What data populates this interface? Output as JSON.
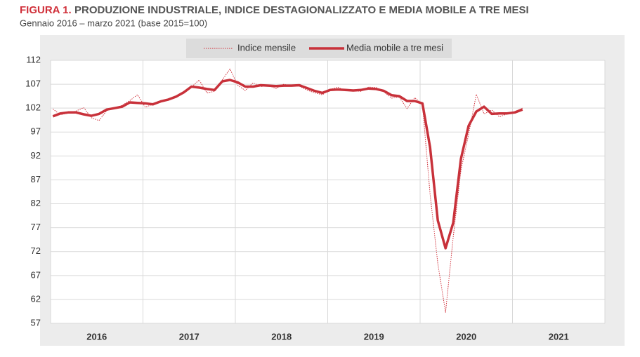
{
  "chart_data": {
    "type": "line",
    "title_label": "FIGURA 1.",
    "title": "PRODUZIONE INDUSTRIALE, INDICE DESTAGIONALIZZATO E MEDIA MOBILE A TRE MESI",
    "subtitle": "Gennaio 2016 – marzo 2021 (base 2015=100)",
    "year_groups": [
      "2016",
      "2017",
      "2018",
      "2019",
      "2020",
      "2021"
    ],
    "months_per_group": 12,
    "ylim": [
      57,
      112
    ],
    "yticks": [
      57,
      62,
      67,
      72,
      77,
      82,
      87,
      92,
      97,
      102,
      107,
      112
    ],
    "grid": true,
    "series": [
      {
        "name": "Indice mensile",
        "color": "#d0303a",
        "style": "dotted",
        "values": [
          101.8,
          100.6,
          101.0,
          101.4,
          102.1,
          100.0,
          99.4,
          101.5,
          102.0,
          102.6,
          103.6,
          104.8,
          102.2,
          102.8,
          103.5,
          103.9,
          104.2,
          105.5,
          106.4,
          107.9,
          105.2,
          105.5,
          107.9,
          110.2,
          106.8,
          105.7,
          107.3,
          106.5,
          106.7,
          106.1,
          107.0,
          106.6,
          106.6,
          105.8,
          105.2,
          104.8,
          105.9,
          106.4,
          105.6,
          105.7,
          105.5,
          106.4,
          106.3,
          105.4,
          104.1,
          104.3,
          101.9,
          104.2,
          102.8,
          84.0,
          69.5,
          59.3,
          75.0,
          89.0,
          96.5,
          104.9,
          100.8,
          101.6,
          100.2,
          100.8,
          101.3,
          102.0
        ]
      },
      {
        "name": "Media mobile a tre mesi",
        "color": "#c8313a",
        "style": "solid",
        "values": [
          100.3,
          100.9,
          101.1,
          101.1,
          100.7,
          100.4,
          100.8,
          101.7,
          102.0,
          102.3,
          103.2,
          103.1,
          103.0,
          102.8,
          103.4,
          103.8,
          104.4,
          105.3,
          106.5,
          106.3,
          106.0,
          105.8,
          107.6,
          107.9,
          107.4,
          106.5,
          106.5,
          106.8,
          106.7,
          106.6,
          106.7,
          106.7,
          106.8,
          106.2,
          105.6,
          105.2,
          105.8,
          105.9,
          105.8,
          105.7,
          105.8,
          106.1,
          106.0,
          105.6,
          104.7,
          104.5,
          103.5,
          103.5,
          103.0,
          93.8,
          78.5,
          72.7,
          78.0,
          91.4,
          98.3,
          101.3,
          102.3,
          100.8,
          100.9,
          100.9,
          101.1,
          101.7
        ]
      }
    ]
  }
}
